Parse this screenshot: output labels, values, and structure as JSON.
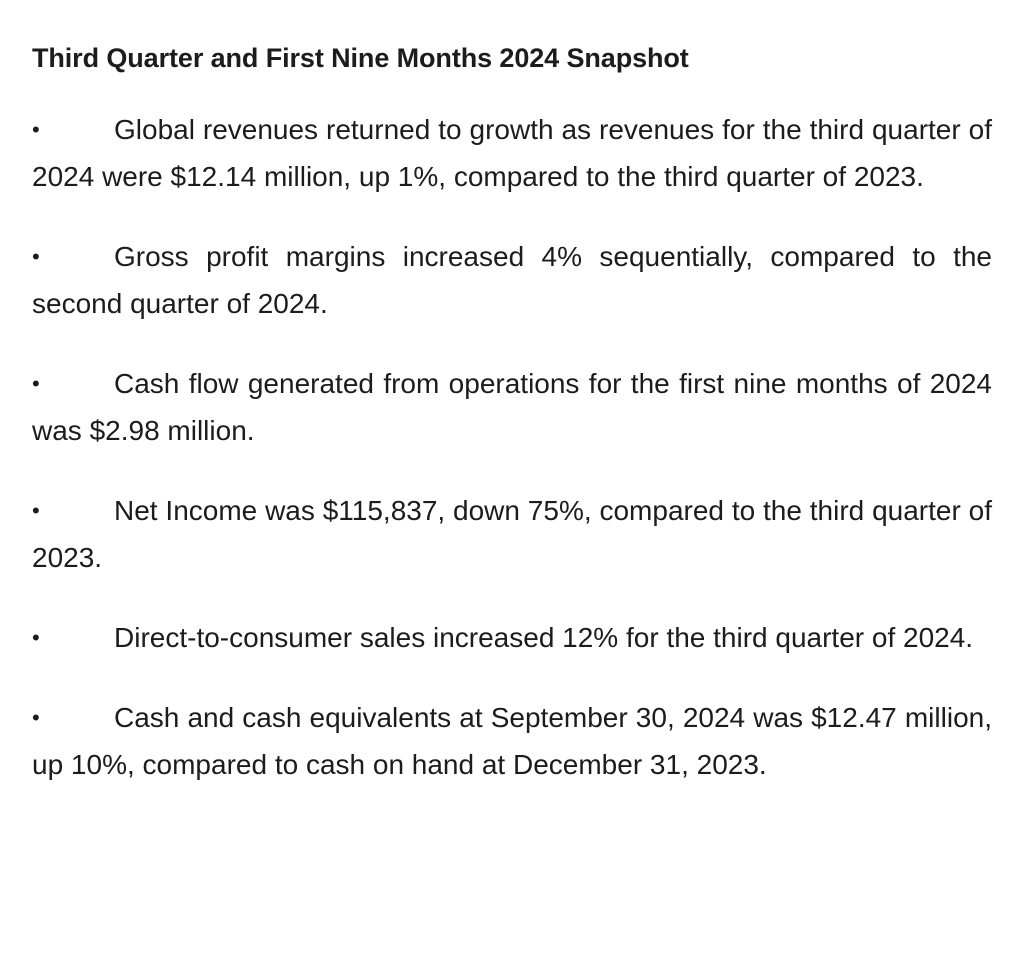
{
  "title": "Third Quarter and First Nine Months 2024 Snapshot",
  "bullet_glyph": "•",
  "items": [
    {
      "text": "Global revenues returned to growth as revenues for the third quarter of 2024 were $12.14 million, up 1%, compared to the third quarter of 2023."
    },
    {
      "text": "Gross profit margins increased 4% sequentially, compared to the second quarter of 2024."
    },
    {
      "text": "Cash flow generated from operations for the first nine months of 2024 was $2.98 million."
    },
    {
      "text": "Net Income was $115,837, down 75%, compared to the third quarter of 2023."
    },
    {
      "text": "Direct-to-consumer sales increased 12% for the third quarter of 2024."
    },
    {
      "text": "Cash and cash equivalents at September 30, 2024 was $12.47 million, up 10%, compared to cash on hand at December 31, 2023."
    }
  ]
}
